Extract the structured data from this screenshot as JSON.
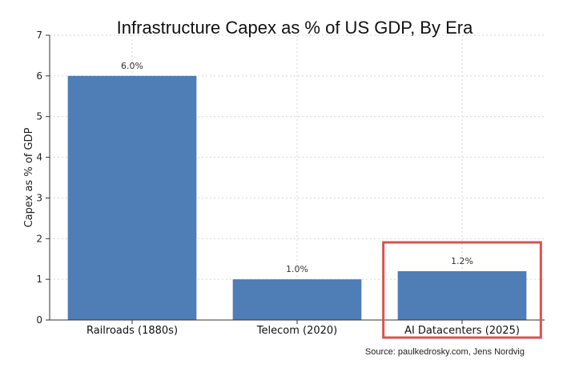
{
  "chart_data": {
    "type": "bar",
    "title": "Infrastructure Capex as % of US GDP, By Era",
    "xlabel": "",
    "ylabel": "Capex as % of GDP",
    "ylim": [
      0,
      7
    ],
    "yticks": [
      0,
      1,
      2,
      3,
      4,
      5,
      6,
      7
    ],
    "grid": true,
    "categories": [
      "Railroads (1880s)",
      "Telecom (2020)",
      "AI Datacenters (2025)"
    ],
    "values": [
      6.0,
      1.0,
      1.2
    ],
    "data_labels": [
      "6.0%",
      "1.0%",
      "1.2%"
    ],
    "bar_color": "#4f7db5",
    "highlight": {
      "category": "AI Datacenters (2025)",
      "color": "#d9534f"
    },
    "source": "Source: paulkedrosky.com, Jens Nordvig"
  }
}
